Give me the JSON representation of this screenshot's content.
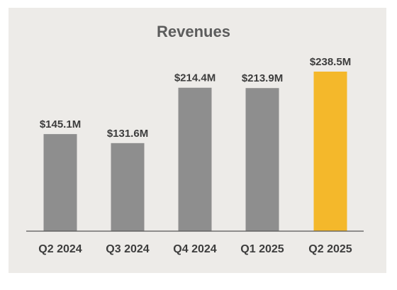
{
  "chart_data": {
    "type": "bar",
    "title": "Revenues",
    "categories": [
      "Q2 2024",
      "Q3 2024",
      "Q4 2024",
      "Q1 2025",
      "Q2 2025"
    ],
    "values": [
      145.1,
      131.6,
      214.4,
      213.9,
      238.5
    ],
    "value_labels": [
      "$145.1M",
      "$131.6M",
      "$214.4M",
      "$213.9M",
      "$238.5M"
    ],
    "ylim": [
      0,
      238.5
    ],
    "grid": false,
    "legend": "none",
    "colors": {
      "bar": "#8e8e8e",
      "highlight_bar": "#f4b82b",
      "highlight_index": 4,
      "axis": "#555555",
      "background": "#edebe8"
    }
  }
}
